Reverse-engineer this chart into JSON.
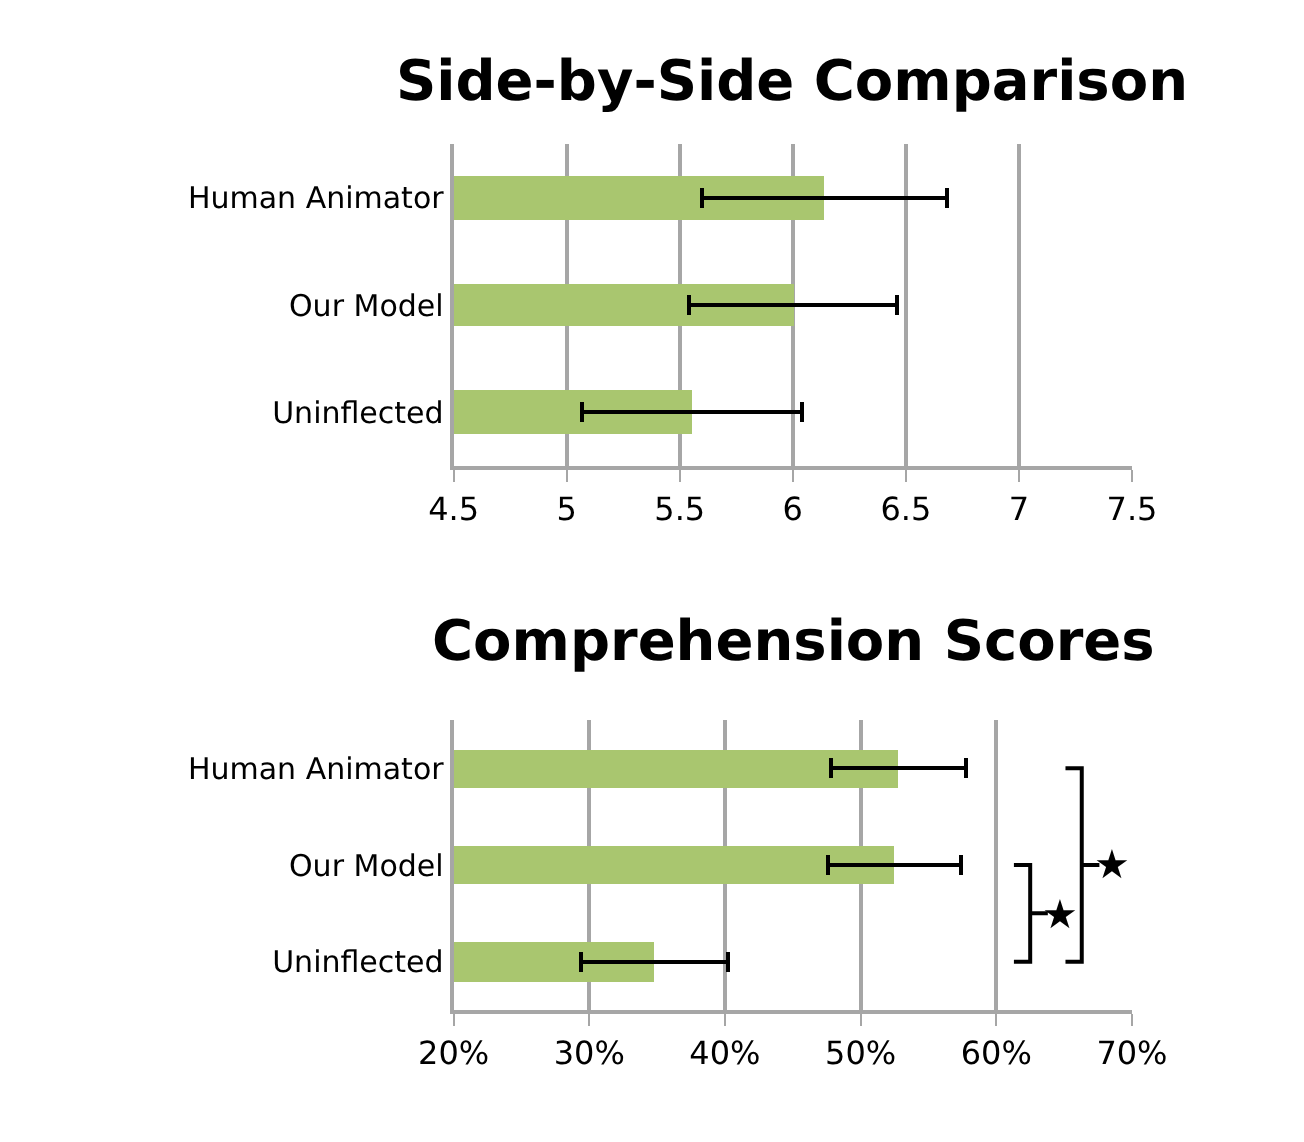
{
  "chart_data": [
    {
      "type": "bar",
      "orientation": "horizontal",
      "title": "Side-by-Side Comparison",
      "categories": [
        "Human Animator",
        "Our Model",
        "Uninflected"
      ],
      "values": [
        6.14,
        6.0,
        5.55
      ],
      "errors": [
        [
          5.6,
          6.68
        ],
        [
          5.54,
          6.46
        ],
        [
          5.07,
          6.04
        ]
      ],
      "color": "#a9c66f",
      "xlim": [
        4.5,
        7.5
      ],
      "xticks": [
        4.5,
        5,
        5.5,
        6,
        6.5,
        7,
        7.5
      ],
      "grid": "x"
    },
    {
      "type": "bar",
      "orientation": "horizontal",
      "title": "Comprehension Scores",
      "categories": [
        "Human Animator",
        "Our Model",
        "Uninflected"
      ],
      "values": [
        52.7,
        52.4,
        34.7
      ],
      "errors": [
        [
          47.8,
          57.8
        ],
        [
          47.6,
          57.4
        ],
        [
          29.4,
          40.2
        ]
      ],
      "color": "#a9c66f",
      "xlim": [
        20,
        70
      ],
      "xticks": [
        {
          "value": 20,
          "label": "20%"
        },
        {
          "value": 30,
          "label": "30%"
        },
        {
          "value": 40,
          "label": "40%"
        },
        {
          "value": 50,
          "label": "50%"
        },
        {
          "value": 60,
          "label": "60%"
        },
        {
          "value": 70,
          "label": "70%"
        }
      ],
      "grid": "x",
      "annotations": [
        "★",
        "★"
      ]
    }
  ]
}
